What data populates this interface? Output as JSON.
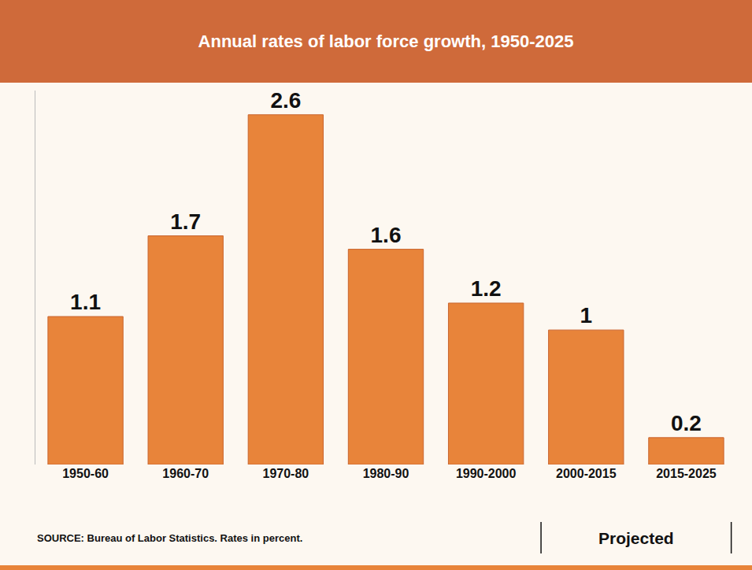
{
  "chart_data": {
    "type": "bar",
    "title": "Annual rates of labor force growth, 1950-2025",
    "categories": [
      "1950-60",
      "1960-70",
      "1970-80",
      "1980-90",
      "1990-2000",
      "2000-2015",
      "2015-2025"
    ],
    "values": [
      1.1,
      1.7,
      2.6,
      1.6,
      1.2,
      1.0,
      0.2
    ],
    "color": "#e8843a",
    "ylim": [
      0,
      2.78
    ],
    "yticks": [],
    "tick_labels": "x",
    "data_labels": true,
    "grid": false,
    "annotations": [
      {
        "text": "SOURCE: Bureau of Labor Statistics. Rates in percent."
      },
      {
        "text": "Projected",
        "categories": [
          "2000-2015",
          "2015-2025"
        ]
      }
    ]
  }
}
